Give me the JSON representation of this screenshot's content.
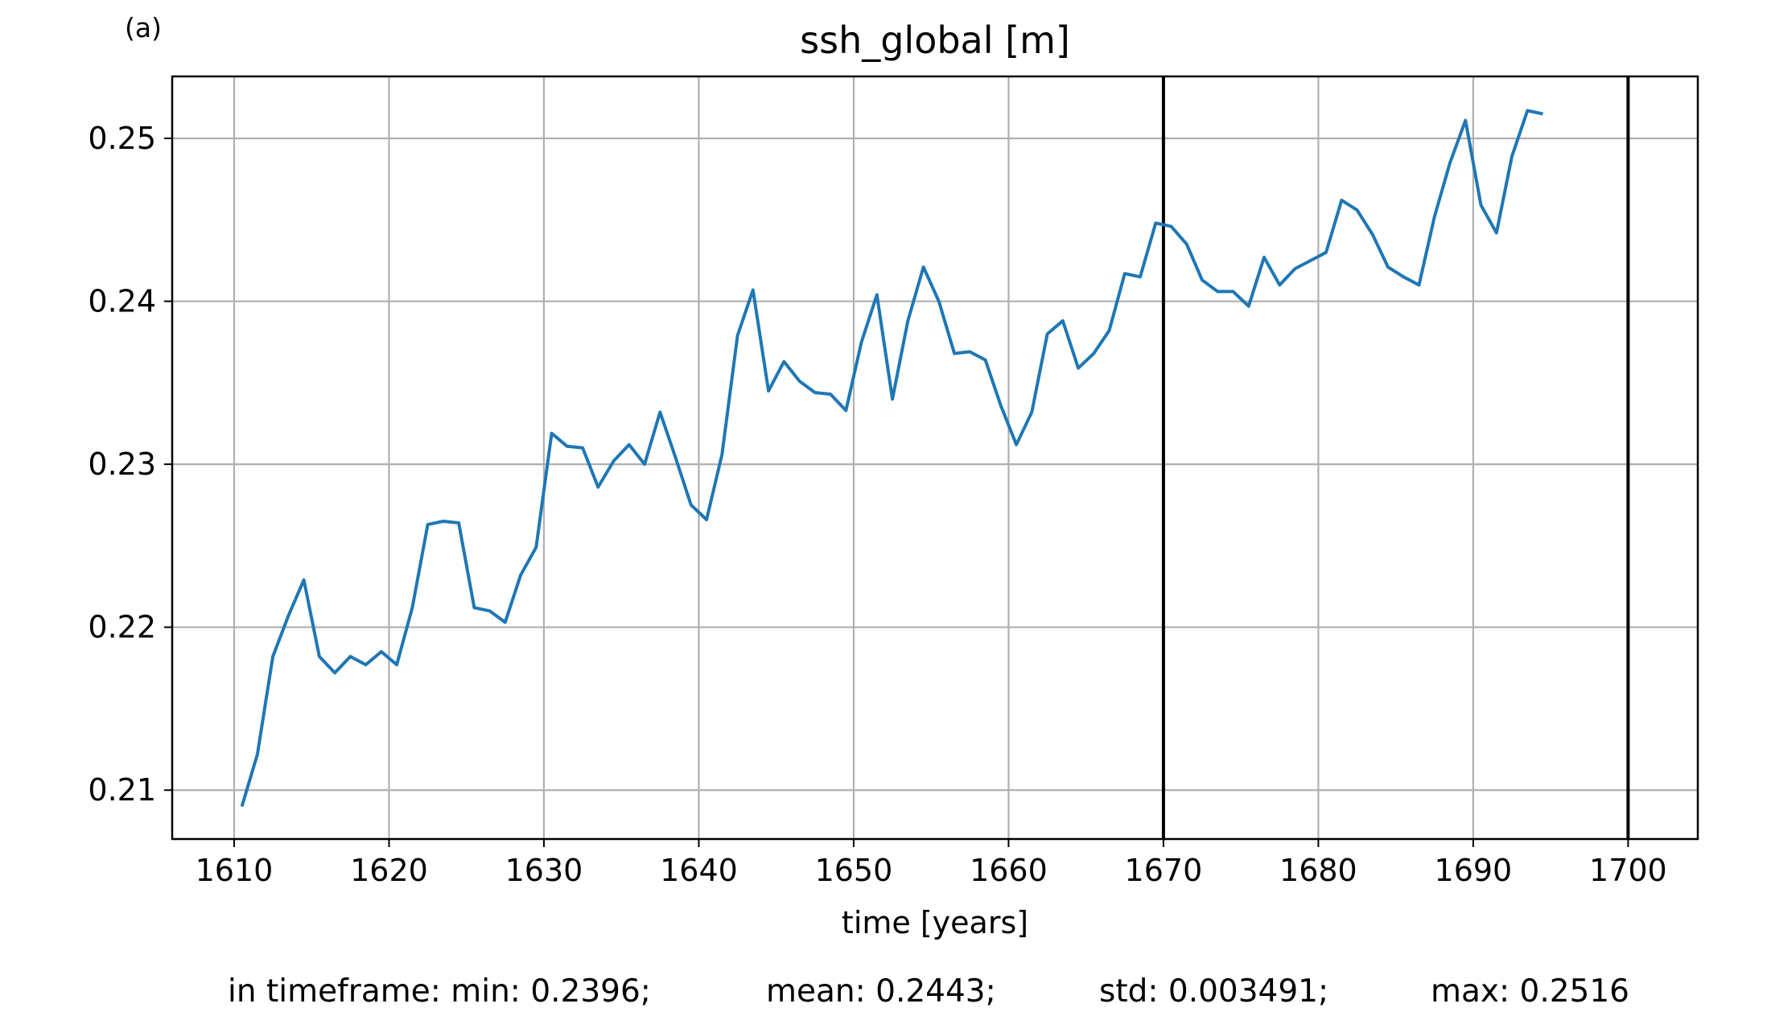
{
  "panel_label": "(a)",
  "chart_data": {
    "type": "line",
    "title": "ssh_global [m]",
    "xlabel": "time [years]",
    "ylabel": "",
    "xlim": [
      1606,
      1704.5
    ],
    "ylim": [
      0.207,
      0.2538
    ],
    "grid": true,
    "xticks": [
      1610,
      1620,
      1630,
      1640,
      1650,
      1660,
      1670,
      1680,
      1690,
      1700
    ],
    "yticks": [
      0.21,
      0.22,
      0.23,
      0.24,
      0.25
    ],
    "ytick_labels": [
      "0.21",
      "0.22",
      "0.23",
      "0.24",
      "0.25"
    ],
    "vlines": [
      1670,
      1700
    ],
    "line_color": "#1f77b4",
    "series": [
      {
        "x": [
          1610.5,
          1611.5,
          1612.5,
          1613.5,
          1614.5,
          1615.5,
          1616.5,
          1617.5,
          1618.5,
          1619.5,
          1620.5,
          1621.5,
          1622.5,
          1623.5,
          1624.5,
          1625.5,
          1626.5,
          1627.5,
          1628.5,
          1629.5,
          1630.5,
          1631.5,
          1632.5,
          1633.5,
          1634.5,
          1635.5,
          1636.5,
          1637.5,
          1638.5,
          1639.5,
          1640.5,
          1641.5,
          1642.5,
          1643.5,
          1644.5,
          1645.5,
          1646.5,
          1647.5,
          1648.5,
          1649.5,
          1650.5,
          1651.5,
          1652.5,
          1653.5,
          1654.5,
          1655.5,
          1656.5,
          1657.5,
          1658.5,
          1659.5,
          1660.5,
          1661.5,
          1662.5,
          1663.5,
          1664.5,
          1665.5,
          1666.5,
          1667.5,
          1668.5,
          1669.5,
          1670.5,
          1671.5,
          1672.5,
          1673.5,
          1674.5,
          1675.5,
          1676.5,
          1677.5,
          1678.5,
          1679.5,
          1680.5,
          1681.5,
          1682.5,
          1683.5,
          1684.5,
          1685.5,
          1686.5,
          1687.5,
          1688.5,
          1689.5,
          1690.5,
          1691.5,
          1692.5,
          1693.5,
          1694.5
        ],
        "y": [
          0.209,
          0.2122,
          0.2182,
          0.2207,
          0.2229,
          0.2182,
          0.2172,
          0.2182,
          0.2177,
          0.2185,
          0.2177,
          0.2212,
          0.2263,
          0.2265,
          0.2264,
          0.2212,
          0.221,
          0.2203,
          0.2232,
          0.2249,
          0.2319,
          0.2311,
          0.231,
          0.2286,
          0.2302,
          0.2312,
          0.23,
          0.2332,
          0.2304,
          0.2275,
          0.2266,
          0.2306,
          0.2379,
          0.2407,
          0.2345,
          0.2363,
          0.2351,
          0.2344,
          0.2343,
          0.2333,
          0.2375,
          0.2404,
          0.234,
          0.2388,
          0.2421,
          0.24,
          0.2368,
          0.2369,
          0.2364,
          0.2336,
          0.2312,
          0.2332,
          0.238,
          0.2388,
          0.2359,
          0.2368,
          0.2382,
          0.2417,
          0.2415,
          0.2448,
          0.2446,
          0.2435,
          0.2413,
          0.2406,
          0.2406,
          0.2397,
          0.2427,
          0.241,
          0.242,
          0.2425,
          0.243,
          0.2462,
          0.2456,
          0.2441,
          0.2421,
          0.2415,
          0.241,
          0.2452,
          0.2485,
          0.2511,
          0.2459,
          0.2442,
          0.2489,
          0.2517,
          0.2515
        ]
      }
    ]
  },
  "stats": {
    "min": "in timeframe: min: 0.2396;",
    "mean": "mean: 0.2443;",
    "std": "std: 0.003491;",
    "max": "max: 0.2516"
  }
}
